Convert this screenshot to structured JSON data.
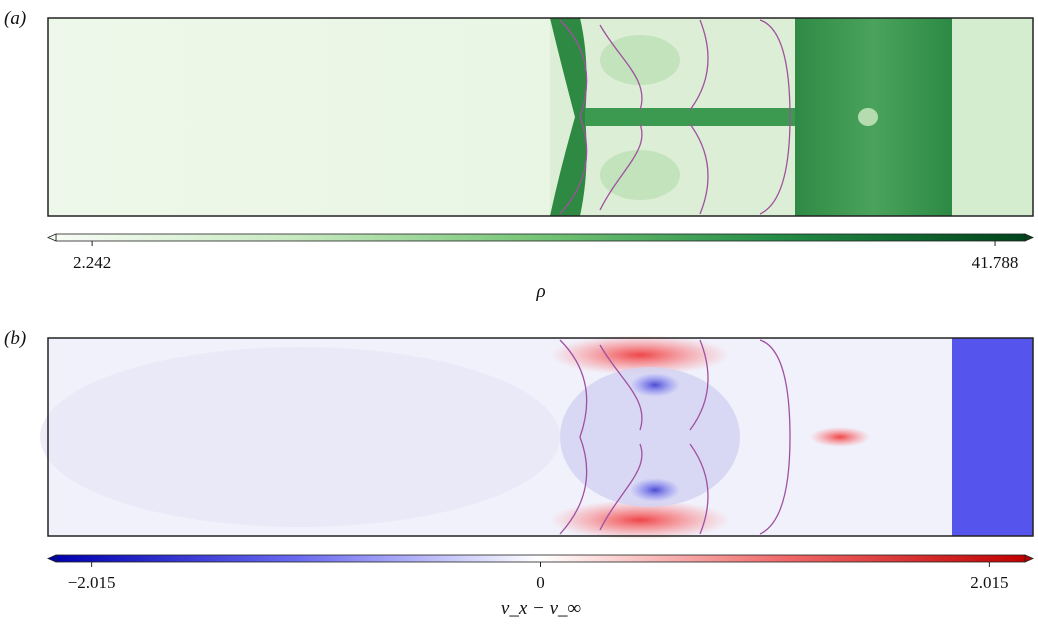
{
  "chart_data": [
    {
      "type": "heatmap",
      "panel_label": "(a)",
      "colorbar_label": "ρ",
      "colormap": [
        "#f7fcf5",
        "#c7e9c0",
        "#74c476",
        "#238b45",
        "#00441b"
      ],
      "clim": [
        0.66,
        43.1
      ],
      "colorbar_ticks": [
        2.242,
        41.788
      ],
      "colorbar_extend": "both"
    },
    {
      "type": "heatmap",
      "panel_label": "(b)",
      "colorbar_label": "v_x − v_∞",
      "colormap": [
        "#0000b0",
        "#6a6af0",
        "#ffffff",
        "#f06a6a",
        "#c00000"
      ],
      "clim": [
        -2.175,
        2.175
      ],
      "colorbar_ticks": [
        {
          "value": -2.015,
          "label": "−2.015"
        },
        0,
        2.015
      ],
      "colorbar_extend": "both"
    }
  ]
}
